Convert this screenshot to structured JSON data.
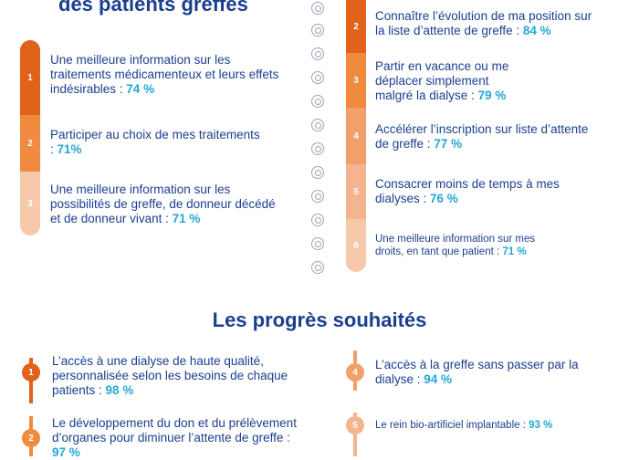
{
  "top_left": {
    "title": "des patients greffés",
    "items": [
      {
        "num": "1",
        "text": "Une meilleure information sur les traitements médicamenteux et leurs effets indésirables : ",
        "pct": "74 %"
      },
      {
        "num": "2",
        "text": "Participer au choix de mes traitements : ",
        "pct": "71%"
      },
      {
        "num": "3",
        "text": "Une meilleure information sur les possibilités de greffe, de donneur décédé et de donneur vivant : ",
        "pct": "71 %"
      }
    ]
  },
  "top_right": {
    "items": [
      {
        "num": "2",
        "text": "Connaître l’évolution de ma position sur la liste d’attente de greffe : ",
        "pct": "84 %"
      },
      {
        "num": "3",
        "text": "Partir en vacance ou me déplacer simplement malgré la dialyse : ",
        "pct": "79 %"
      },
      {
        "num": "4",
        "text": "Accélérer l’inscription sur liste d’attente de greffe : ",
        "pct": "77 %"
      },
      {
        "num": "5",
        "text": "Consacrer moins de temps à mes dialyses : ",
        "pct": "76 %"
      },
      {
        "num": "6",
        "text": "Une meilleure information sur mes droits, en tant que patient : ",
        "pct": "71 %"
      }
    ]
  },
  "progress": {
    "title": "Les progrès souhaités",
    "left_items": [
      {
        "num": "1",
        "text": "L’accès à une dialyse de haute qualité, personnalisée selon les besoins de chaque patients : ",
        "pct": "98 %"
      },
      {
        "num": "2",
        "text": "Le développement du don et du prélèvement d’organes pour diminuer l’attente de greffe : ",
        "pct": "97 %"
      }
    ],
    "right_items": [
      {
        "num": "4",
        "text": "L’accès à la greffe sans passer par la dialyse : ",
        "pct": "94 %"
      },
      {
        "num": "5",
        "text": "Le rein bio-artificiel implantable : ",
        "pct": "93 %"
      }
    ]
  },
  "colors": {
    "dark_orange": "#e0621b",
    "mid_orange": "#ef8a3f",
    "light_orange": "#f4b48f",
    "pale_orange": "#f6c9ab",
    "title_blue": "#1b3f8f",
    "pct_cyan": "#22a7d8"
  }
}
